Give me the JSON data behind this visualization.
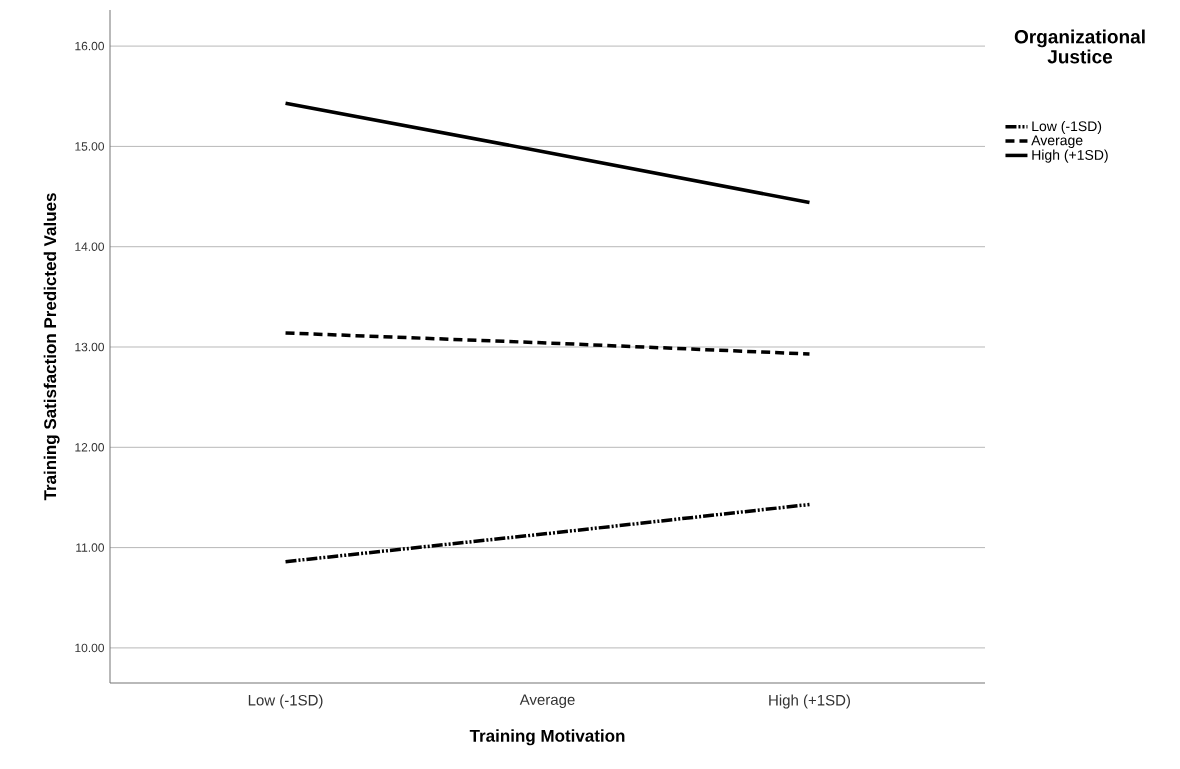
{
  "chart_data": {
    "type": "line",
    "xlabel": "Training Motivation",
    "ylabel": "Training Satisfaction Predicted Values",
    "legend_title": "Organizational Justice",
    "categories": [
      "Low (-1SD)",
      "Average",
      "High (+1SD)"
    ],
    "series": [
      {
        "name": "Low (-1SD)",
        "color": "#000000",
        "line_style": "dashdotdot",
        "values": [
          10.86,
          11.14,
          11.43
        ]
      },
      {
        "name": "Average",
        "color": "#000000",
        "line_style": "dashed",
        "values": [
          13.14,
          13.04,
          12.93
        ]
      },
      {
        "name": "High (+1SD)",
        "color": "#000000",
        "line_style": "solid",
        "values": [
          15.43,
          14.94,
          14.44
        ]
      }
    ],
    "ylim": [
      9.65,
      16.36
    ],
    "yticks": [
      {
        "value": 10,
        "label": "10.00"
      },
      {
        "value": 11,
        "label": "11.00"
      },
      {
        "value": 12,
        "label": "12.00"
      },
      {
        "value": 13,
        "label": "13.00"
      },
      {
        "value": 14,
        "label": "14.00"
      },
      {
        "value": 15,
        "label": "15.00"
      },
      {
        "value": 16,
        "label": "16.00"
      }
    ],
    "grid": "y",
    "legend": "right",
    "marker": "none"
  }
}
